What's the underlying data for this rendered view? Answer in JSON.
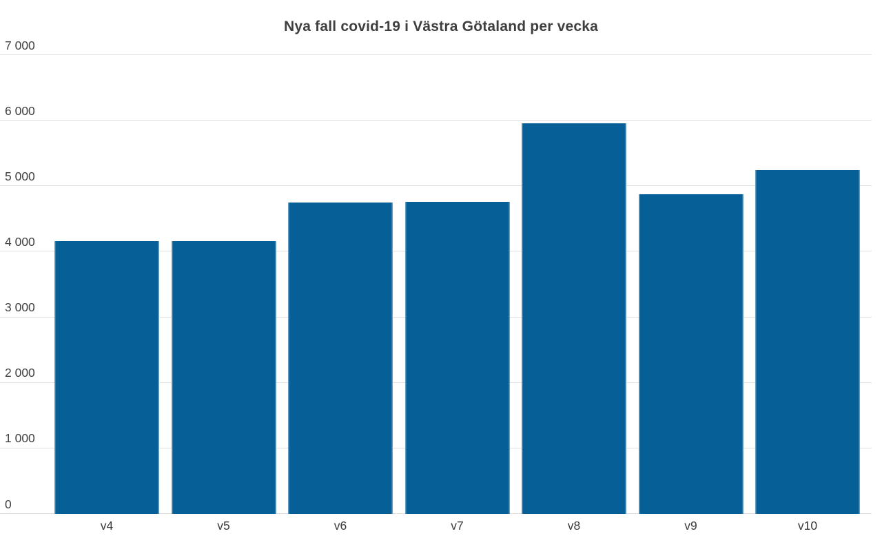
{
  "chart_data": {
    "type": "bar",
    "title": "Nya fall covid-19 i Västra Götaland per vecka",
    "categories": [
      "v4",
      "v5",
      "v6",
      "v7",
      "v8",
      "v9",
      "v10"
    ],
    "values": [
      4150,
      4150,
      4740,
      4750,
      5950,
      4870,
      5230
    ],
    "xlabel": "",
    "ylabel": "",
    "ylim": [
      0,
      7000
    ],
    "ytick_step": 1000,
    "ytick_values": [
      0,
      1000,
      2000,
      3000,
      4000,
      5000,
      6000,
      7000
    ],
    "ytick_labels": [
      "0",
      "1 000",
      "2 000",
      "3 000",
      "4 000",
      "5 000",
      "6 000",
      "7 000"
    ],
    "grid": "horizontal",
    "legend_position": "none",
    "colors": {
      "bar": "#065f96",
      "gridline": "#e0e0e0",
      "title_text": "#3f3f3f",
      "tick_text": "#404040",
      "background": "#ffffff"
    }
  }
}
